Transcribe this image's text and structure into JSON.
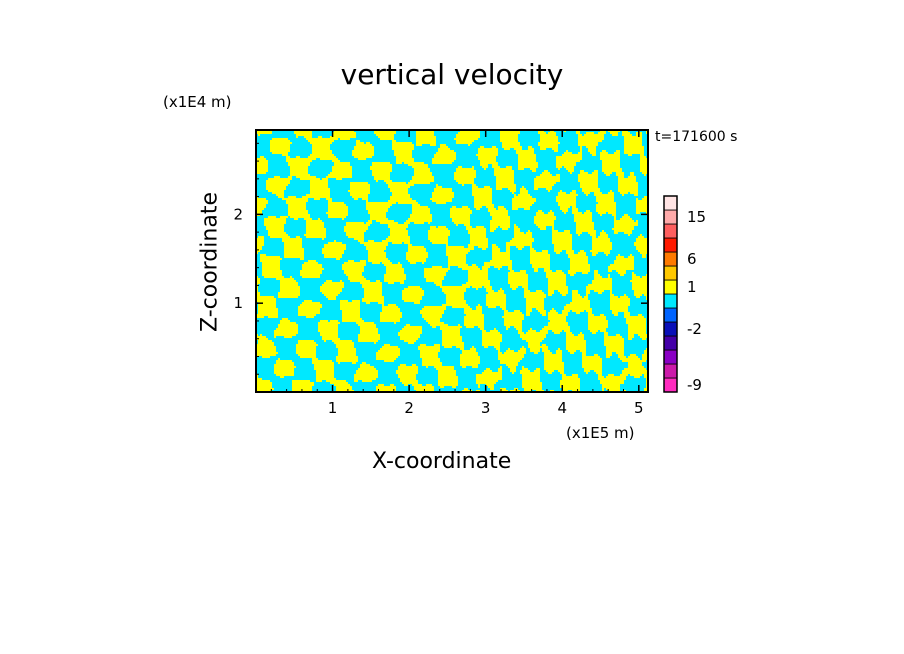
{
  "chart_data": {
    "type": "heatmap",
    "title": "vertical velocity",
    "xlabel": "X-coordinate",
    "ylabel": "Z-coordinate",
    "x_unit": "(x1E5 m)",
    "y_unit": "(x1E4 m)",
    "time_label": "t=171600 s",
    "xlim": [
      0,
      5.12
    ],
    "ylim": [
      0,
      2.95
    ],
    "x_ticks": [
      1,
      2,
      3,
      4,
      5
    ],
    "x_tick_labels": [
      "1",
      "2",
      "3",
      "4",
      "5"
    ],
    "y_ticks": [
      1,
      2
    ],
    "y_tick_labels": [
      "1",
      "2"
    ],
    "grid": false,
    "field_colors": {
      "positive": "#ffff00",
      "negative": "#00e8ff"
    },
    "colorbar": {
      "levels": [
        {
          "color": "#ff2bbf",
          "label": "-9"
        },
        {
          "color": "#cc1aaa",
          "label": ""
        },
        {
          "color": "#8a00c4",
          "label": ""
        },
        {
          "color": "#4400a8",
          "label": ""
        },
        {
          "color": "#0a10b8",
          "label": "-2"
        },
        {
          "color": "#0064ff",
          "label": ""
        },
        {
          "color": "#00e8ff",
          "label": ""
        },
        {
          "color": "#ffff00",
          "label": "1"
        },
        {
          "color": "#ffc800",
          "label": ""
        },
        {
          "color": "#ff7a00",
          "label": "6"
        },
        {
          "color": "#ff1a00",
          "label": ""
        },
        {
          "color": "#ff5f5f",
          "label": ""
        },
        {
          "color": "#ffaaaa",
          "label": "15"
        },
        {
          "color": "#ffe4e4",
          "label": ""
        }
      ]
    }
  }
}
